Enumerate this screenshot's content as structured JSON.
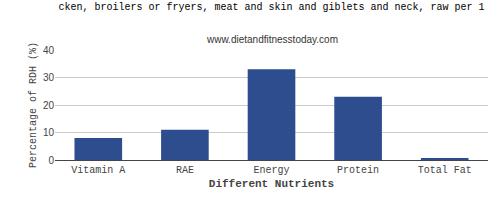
{
  "chart_data": {
    "type": "bar",
    "title": "cken, broilers or fryers, meat and skin and giblets and neck, raw per 1",
    "subtitle": "www.dietandfitnesstoday.com",
    "xlabel": "Different Nutrients",
    "ylabel": "Percentage of RDH (%)",
    "categories": [
      "Vitamin A",
      "RAE",
      "Energy",
      "Protein",
      "Total Fat"
    ],
    "values": [
      8.0,
      11.0,
      33.0,
      23.0,
      0.5
    ],
    "color": "#2e4d8e",
    "ylim": [
      0,
      40
    ],
    "yticks": [
      0,
      10,
      20,
      30,
      40
    ],
    "grid": true
  }
}
